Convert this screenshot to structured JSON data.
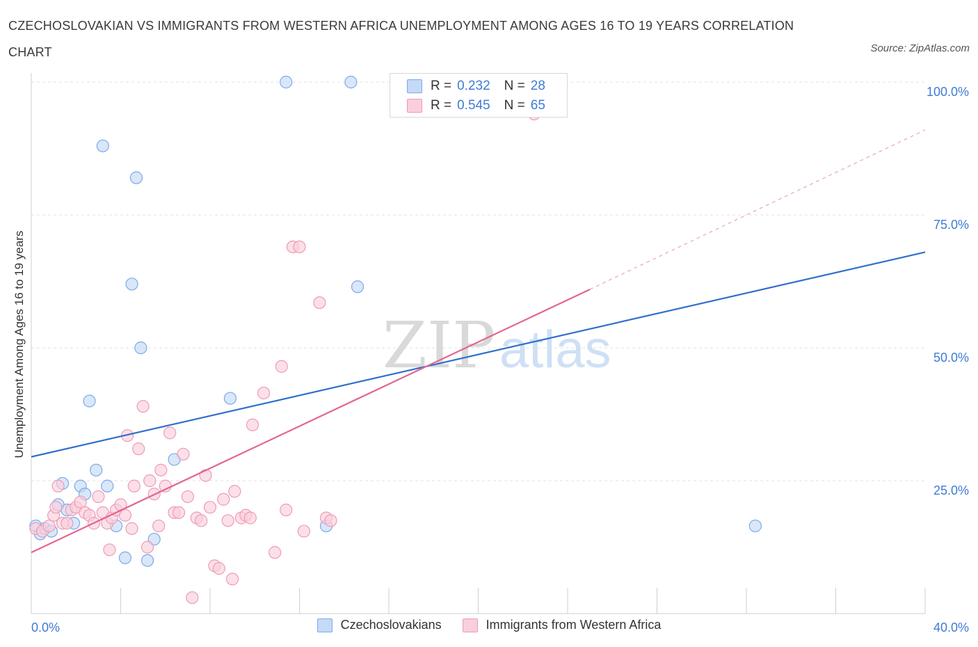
{
  "header": {
    "title": "CZECHOSLOVAKIAN VS IMMIGRANTS FROM WESTERN AFRICA UNEMPLOYMENT AMONG AGES 16 TO 19 YEARS CORRELATION CHART",
    "source": "Source: ZipAtlas.com"
  },
  "legend_top": {
    "rows": [
      {
        "r_label": "R =",
        "r_value": "0.232",
        "n_label": "N =",
        "n_value": "28"
      },
      {
        "r_label": "R =",
        "r_value": "0.545",
        "n_label": "N =",
        "n_value": "65"
      }
    ]
  },
  "watermark": {
    "zip": "ZIP",
    "atlas": "atlas"
  },
  "chart_data": {
    "type": "scatter",
    "title": "CZECHOSLOVAKIAN VS IMMIGRANTS FROM WESTERN AFRICA UNEMPLOYMENT AMONG AGES 16 TO 19 YEARS CORRELATION CHART",
    "xlabel": "",
    "ylabel": "Unemployment Among Ages 16 to 19 years",
    "xlim": [
      0,
      40
    ],
    "ylim": [
      0,
      100
    ],
    "x_tick_labels": [
      "0.0%",
      "40.0%"
    ],
    "y_ticks": [
      25,
      50,
      75,
      100
    ],
    "y_tick_labels": [
      "25.0%",
      "50.0%",
      "75.0%",
      "100.0%"
    ],
    "grid": true,
    "legend_placement": "bottom",
    "series": [
      {
        "name": "Czechoslovakians",
        "color": "#7aaaea",
        "fill": "#c5daf6",
        "r": 0.232,
        "n": 28,
        "trend": {
          "x0": 0,
          "y0": 29.5,
          "x1": 40,
          "y1": 68.0
        },
        "points": [
          [
            0.2,
            16.5
          ],
          [
            0.4,
            15.0
          ],
          [
            0.6,
            16.0
          ],
          [
            0.9,
            15.5
          ],
          [
            1.2,
            20.5
          ],
          [
            1.4,
            24.5
          ],
          [
            1.6,
            19.5
          ],
          [
            1.9,
            17.0
          ],
          [
            2.2,
            24.0
          ],
          [
            2.4,
            22.5
          ],
          [
            2.6,
            40.0
          ],
          [
            2.9,
            27.0
          ],
          [
            3.2,
            88.0
          ],
          [
            3.4,
            24.0
          ],
          [
            3.8,
            16.5
          ],
          [
            4.2,
            10.5
          ],
          [
            4.5,
            62.0
          ],
          [
            4.7,
            82.0
          ],
          [
            4.9,
            50.0
          ],
          [
            5.2,
            10.0
          ],
          [
            5.5,
            14.0
          ],
          [
            6.4,
            29.0
          ],
          [
            8.9,
            40.5
          ],
          [
            11.4,
            100.0
          ],
          [
            13.2,
            16.5
          ],
          [
            14.3,
            100.0
          ],
          [
            14.6,
            61.5
          ],
          [
            32.4,
            16.5
          ]
        ]
      },
      {
        "name": "Immigrants from Western Africa",
        "color": "#ef9ab5",
        "fill": "#f9cfdc",
        "r": 0.545,
        "n": 65,
        "trend": {
          "x0": 0,
          "y0": 11.5,
          "x1": 25,
          "y1": 61.0
        },
        "trend_dashed_to": {
          "x": 40,
          "y": 91.0
        },
        "points": [
          [
            0.2,
            16.0
          ],
          [
            0.5,
            15.5
          ],
          [
            0.8,
            16.5
          ],
          [
            1.0,
            18.5
          ],
          [
            1.1,
            20.0
          ],
          [
            1.2,
            24.0
          ],
          [
            1.4,
            17.0
          ],
          [
            1.6,
            17.0
          ],
          [
            1.8,
            19.5
          ],
          [
            2.0,
            20.0
          ],
          [
            2.2,
            21.0
          ],
          [
            2.4,
            19.0
          ],
          [
            2.6,
            18.5
          ],
          [
            2.8,
            17.0
          ],
          [
            3.0,
            22.0
          ],
          [
            3.2,
            19.0
          ],
          [
            3.4,
            17.0
          ],
          [
            3.5,
            12.0
          ],
          [
            3.6,
            18.0
          ],
          [
            3.8,
            19.5
          ],
          [
            4.0,
            20.5
          ],
          [
            4.2,
            18.5
          ],
          [
            4.3,
            33.5
          ],
          [
            4.5,
            16.0
          ],
          [
            4.6,
            24.0
          ],
          [
            4.8,
            31.0
          ],
          [
            5.0,
            39.0
          ],
          [
            5.2,
            12.5
          ],
          [
            5.3,
            25.0
          ],
          [
            5.5,
            22.5
          ],
          [
            5.7,
            16.5
          ],
          [
            5.8,
            27.0
          ],
          [
            6.0,
            24.0
          ],
          [
            6.2,
            34.0
          ],
          [
            6.4,
            19.0
          ],
          [
            6.6,
            19.0
          ],
          [
            6.8,
            30.0
          ],
          [
            7.0,
            22.0
          ],
          [
            7.2,
            3.0
          ],
          [
            7.4,
            18.0
          ],
          [
            7.6,
            17.5
          ],
          [
            7.8,
            26.0
          ],
          [
            8.0,
            20.0
          ],
          [
            8.2,
            9.0
          ],
          [
            8.4,
            8.5
          ],
          [
            8.6,
            21.5
          ],
          [
            8.8,
            17.5
          ],
          [
            9.0,
            6.5
          ],
          [
            9.1,
            23.0
          ],
          [
            9.4,
            18.0
          ],
          [
            9.6,
            18.5
          ],
          [
            9.8,
            18.0
          ],
          [
            9.9,
            35.5
          ],
          [
            10.4,
            41.5
          ],
          [
            10.9,
            11.5
          ],
          [
            11.2,
            46.5
          ],
          [
            11.4,
            19.5
          ],
          [
            11.7,
            69.0
          ],
          [
            12.0,
            69.0
          ],
          [
            12.2,
            15.5
          ],
          [
            12.9,
            58.5
          ],
          [
            13.2,
            18.0
          ],
          [
            13.4,
            17.5
          ],
          [
            22.5,
            94.0
          ],
          [
            22.7,
            96.0
          ]
        ]
      }
    ]
  },
  "legend_bottom": {
    "items": [
      {
        "label": "Czechoslovakians"
      },
      {
        "label": "Immigrants from Western Africa"
      }
    ]
  }
}
